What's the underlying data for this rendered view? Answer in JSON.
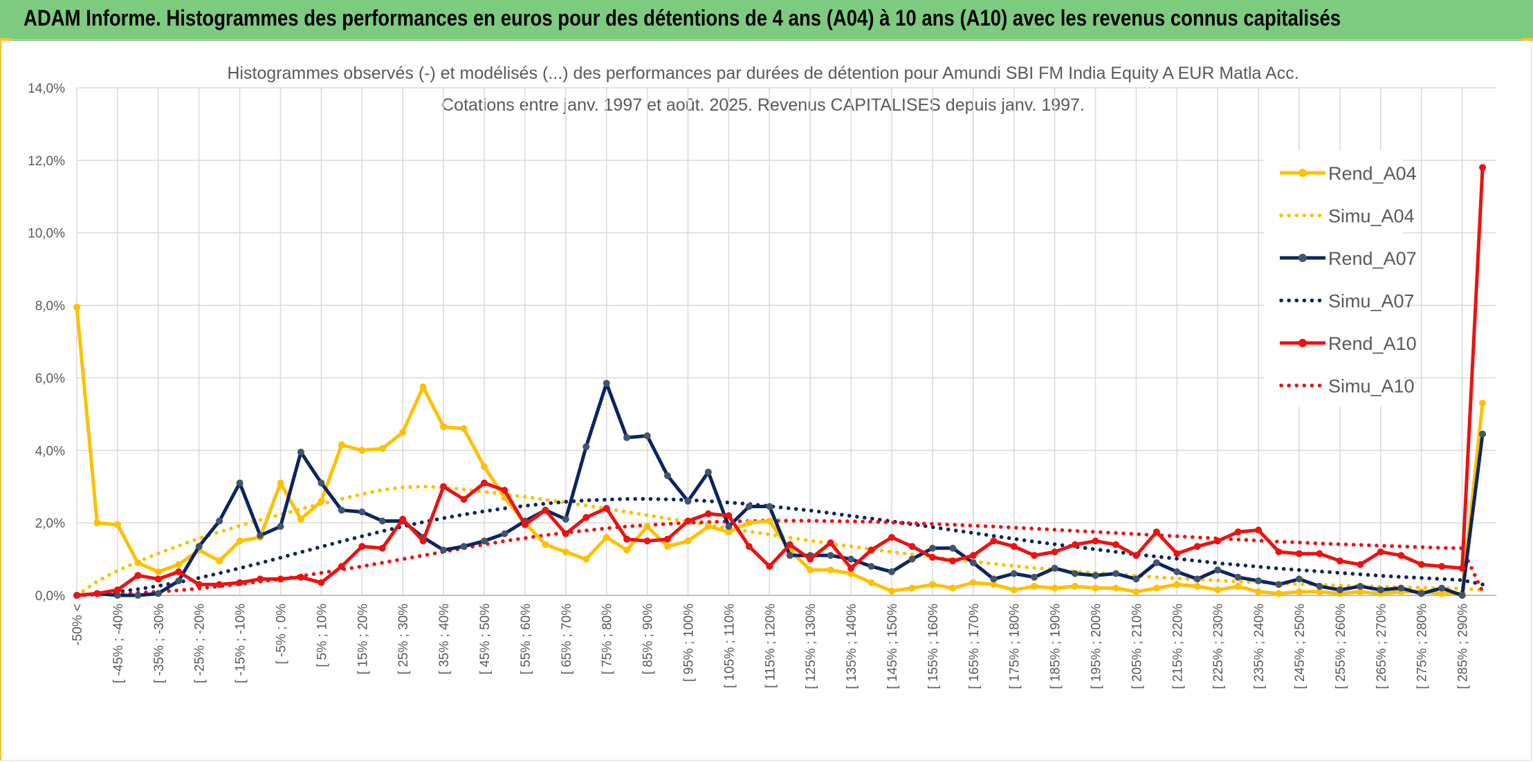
{
  "header": {
    "title": "ADAM Informe. Histogrammes des performances en euros pour des détentions de 4 ans (A04) à 10 ans (A10) avec les revenus connus capitalisés"
  },
  "chart_data": {
    "type": "line",
    "title": "Histogrammes observés (-) et modélisés (...) des performances par durées de détention pour Amundi SBI FM India Equity A EUR Matla Acc.",
    "subtitle": "Cotations entre janv. 1997 et août. 2025. Revenus CAPITALISES depuis janv. 1997.",
    "xlabel": "",
    "ylabel": "",
    "ylim": [
      0,
      14
    ],
    "y_ticks": [
      "0,0%",
      "2,0%",
      "4,0%",
      "6,0%",
      "8,0%",
      "10,0%",
      "12,0%",
      "14,0%"
    ],
    "grid": true,
    "legend_position": "right",
    "categories": [
      "-50% <",
      "[ -50% ; -45%",
      "[ -45% ; -40%",
      "[ -40% ; -35%",
      "[ -35% ; -30%",
      "[ -30% ; -25%",
      "[ -25% ; -20%",
      "[ -20% ; -15%",
      "[ -15% ; -10%",
      "[ -10% ; -5%",
      "[ -5% ; 0%",
      "[ 0% ; 5%",
      "[ 5% ; 10%",
      "[ 10% ; 15%",
      "[ 15% ; 20%",
      "[ 20% ; 25%",
      "[ 25% ; 30%",
      "[ 30% ; 35%",
      "[ 35% ; 40%",
      "[ 40% ; 45%",
      "[ 45% ; 50%",
      "[ 50% ; 55%",
      "[ 55% ; 60%",
      "[ 60% ; 65%",
      "[ 65% ; 70%",
      "[ 70% ; 75%",
      "[ 75% ; 80%",
      "[ 80% ; 85%",
      "[ 85% ; 90%",
      "[ 90% ; 95%",
      "[ 95% ; 100%",
      "[ 100% ; 105%",
      "[ 105% ; 110%",
      "[ 110% ; 115%",
      "[ 115% ; 120%",
      "[ 120% ; 125%",
      "[ 125% ; 130%",
      "[ 130% ; 135%",
      "[ 135% ; 140%",
      "[ 140% ; 145%",
      "[ 145% ; 150%",
      "[ 150% ; 155%",
      "[ 155% ; 160%",
      "[ 160% ; 165%",
      "[ 165% ; 170%",
      "[ 170% ; 175%",
      "[ 175% ; 180%",
      "[ 180% ; 185%",
      "[ 185% ; 190%",
      "[ 190% ; 195%",
      "[ 195% ; 200%",
      "[ 200% ; 205%",
      "[ 205% ; 210%",
      "[ 210% ; 215%",
      "[ 215% ; 220%",
      "[ 220% ; 225%",
      "[ 225% ; 230%",
      "[ 230% ; 235%",
      "[ 235% ; 240%",
      "[ 240% ; 245%",
      "[ 245% ; 250%",
      "[ 250% ; 255%",
      "[ 255% ; 260%",
      "[ 260% ; 265%",
      "[ 265% ; 270%",
      "[ 270% ; 275%",
      "[ 275% ; 280%",
      "[ 280% ; 285%",
      "[ 285% ; 290%",
      "[ 290% ; 295%"
    ],
    "shown_tick_labels": [
      "-50% <",
      "[ -45% ; -40%",
      "[ -35% ; -30%",
      "[ -25% ; -20%",
      "[ -15% ; -10%",
      "[ -5% ; 0%",
      "[ 5% ; 10%",
      "[ 15% ; 20%",
      "[ 25% ; 30%",
      "[ 35% ; 40%",
      "[ 45% ; 50%",
      "[ 55% ; 60%",
      "[ 65% ; 70%",
      "[ 75% ; 80%",
      "[ 85% ; 90%",
      "[ 95% ; 100%",
      "[ 105% ; 110%",
      "[ 115% ; 120%",
      "[ 125% ; 130%",
      "[ 135% ; 140%",
      "[ 145% ; 150%",
      "[ 155% ; 160%",
      "[ 165% ; 170%",
      "[ 175% ; 180%",
      "[ 185% ; 190%",
      "[ 195% ; 200%",
      "[ 205% ; 210%",
      "[ 215% ; 220%",
      "[ 225% ; 230%",
      "[ 235% ; 240%",
      "[ 245% ; 250%",
      "[ 255% ; 260%",
      "[ 265% ; 270%",
      "[ 275% ; 280%",
      "[ 285% ; 290%"
    ],
    "series": [
      {
        "name": "Rend_A04",
        "color": "#ffc000",
        "style": "solid",
        "values": [
          7.95,
          2.0,
          1.95,
          0.9,
          0.65,
          0.85,
          1.25,
          0.95,
          1.5,
          1.6,
          3.1,
          2.1,
          2.6,
          4.15,
          4.0,
          4.05,
          4.5,
          5.75,
          4.65,
          4.6,
          3.55,
          2.7,
          2.0,
          1.4,
          1.2,
          1.0,
          1.6,
          1.25,
          1.9,
          1.35,
          1.5,
          1.9,
          1.75,
          2.0,
          2.05,
          1.25,
          0.7,
          0.7,
          0.6,
          0.35,
          0.12,
          0.2,
          0.3,
          0.2,
          0.35,
          0.3,
          0.15,
          0.25,
          0.2,
          0.25,
          0.2,
          0.2,
          0.1,
          0.2,
          0.3,
          0.25,
          0.15,
          0.25,
          0.1,
          0.05,
          0.1,
          0.1,
          0.05,
          0.1,
          0.05,
          0.1,
          0.1,
          0.05,
          0.05,
          5.3
        ]
      },
      {
        "name": "Simu_A04",
        "color": "#ffc000",
        "style": "dotted",
        "values": [
          0.0,
          0.39,
          0.68,
          0.93,
          1.16,
          1.37,
          1.57,
          1.75,
          1.92,
          2.08,
          2.23,
          2.38,
          2.52,
          2.66,
          2.79,
          2.91,
          2.98,
          3.0,
          2.98,
          2.92,
          2.86,
          2.79,
          2.72,
          2.64,
          2.56,
          2.48,
          2.39,
          2.3,
          2.21,
          2.12,
          2.03,
          1.94,
          1.85,
          1.76,
          1.68,
          1.59,
          1.51,
          1.43,
          1.35,
          1.27,
          1.2,
          1.13,
          1.06,
          0.99,
          0.93,
          0.87,
          0.81,
          0.76,
          0.71,
          0.66,
          0.62,
          0.58,
          0.54,
          0.5,
          0.47,
          0.44,
          0.41,
          0.38,
          0.36,
          0.33,
          0.31,
          0.29,
          0.27,
          0.26,
          0.24,
          0.23,
          0.21,
          0.2,
          0.19,
          0.15
        ]
      },
      {
        "name": "Rend_A07",
        "color": "#0b2561",
        "style": "solid",
        "values": [
          0.0,
          0.05,
          0.0,
          0.0,
          0.05,
          0.4,
          1.35,
          2.05,
          3.1,
          1.65,
          1.9,
          3.95,
          3.1,
          2.35,
          2.3,
          2.05,
          2.05,
          1.6,
          1.25,
          1.35,
          1.5,
          1.7,
          2.05,
          2.35,
          2.1,
          4.1,
          5.85,
          4.35,
          4.4,
          3.3,
          2.6,
          3.4,
          1.9,
          2.45,
          2.45,
          1.1,
          1.1,
          1.1,
          1.0,
          0.8,
          0.65,
          1.0,
          1.3,
          1.3,
          0.9,
          0.45,
          0.6,
          0.5,
          0.75,
          0.6,
          0.55,
          0.6,
          0.45,
          0.9,
          0.65,
          0.45,
          0.7,
          0.5,
          0.4,
          0.3,
          0.45,
          0.25,
          0.15,
          0.25,
          0.15,
          0.2,
          0.05,
          0.2,
          0.0,
          4.45
        ]
      },
      {
        "name": "Simu_A07",
        "color": "#0b2561",
        "style": "dotted",
        "values": [
          0.0,
          0.04,
          0.1,
          0.17,
          0.26,
          0.36,
          0.48,
          0.61,
          0.75,
          0.89,
          1.04,
          1.19,
          1.34,
          1.49,
          1.63,
          1.77,
          1.9,
          2.02,
          2.13,
          2.23,
          2.32,
          2.4,
          2.47,
          2.53,
          2.58,
          2.62,
          2.64,
          2.66,
          2.66,
          2.65,
          2.63,
          2.6,
          2.56,
          2.52,
          2.46,
          2.4,
          2.34,
          2.27,
          2.19,
          2.12,
          2.04,
          1.96,
          1.88,
          1.8,
          1.72,
          1.64,
          1.56,
          1.48,
          1.41,
          1.34,
          1.27,
          1.2,
          1.13,
          1.07,
          1.01,
          0.95,
          0.89,
          0.84,
          0.79,
          0.74,
          0.7,
          0.66,
          0.62,
          0.58,
          0.54,
          0.51,
          0.48,
          0.45,
          0.42,
          0.3
        ]
      },
      {
        "name": "Rend_A10",
        "color": "#ee1111",
        "style": "solid",
        "values": [
          0.0,
          0.05,
          0.15,
          0.55,
          0.45,
          0.65,
          0.3,
          0.3,
          0.35,
          0.45,
          0.45,
          0.5,
          0.35,
          0.8,
          1.35,
          1.3,
          2.1,
          1.5,
          3.0,
          2.65,
          3.1,
          2.9,
          1.95,
          2.35,
          1.7,
          2.15,
          2.4,
          1.55,
          1.5,
          1.55,
          2.05,
          2.25,
          2.2,
          1.35,
          0.8,
          1.4,
          1.0,
          1.45,
          0.75,
          1.25,
          1.6,
          1.35,
          1.05,
          0.95,
          1.1,
          1.5,
          1.35,
          1.1,
          1.2,
          1.4,
          1.5,
          1.4,
          1.1,
          1.75,
          1.15,
          1.35,
          1.5,
          1.75,
          1.8,
          1.2,
          1.15,
          1.15,
          0.95,
          0.85,
          1.2,
          1.1,
          0.85,
          0.8,
          0.75,
          11.8
        ]
      },
      {
        "name": "Simu_A10",
        "color": "#ee1111",
        "style": "dotted",
        "values": [
          0.0,
          0.02,
          0.04,
          0.07,
          0.1,
          0.14,
          0.19,
          0.25,
          0.31,
          0.38,
          0.45,
          0.53,
          0.62,
          0.71,
          0.8,
          0.9,
          1.0,
          1.1,
          1.2,
          1.3,
          1.4,
          1.5,
          1.58,
          1.66,
          1.73,
          1.79,
          1.85,
          1.9,
          1.94,
          1.97,
          2.0,
          2.02,
          2.04,
          2.05,
          2.06,
          2.06,
          2.06,
          2.05,
          2.04,
          2.03,
          2.01,
          1.99,
          1.97,
          1.95,
          1.92,
          1.9,
          1.87,
          1.84,
          1.81,
          1.78,
          1.75,
          1.72,
          1.69,
          1.66,
          1.63,
          1.6,
          1.57,
          1.54,
          1.51,
          1.48,
          1.46,
          1.43,
          1.41,
          1.39,
          1.37,
          1.35,
          1.33,
          1.31,
          1.3,
          0.1
        ]
      }
    ]
  }
}
